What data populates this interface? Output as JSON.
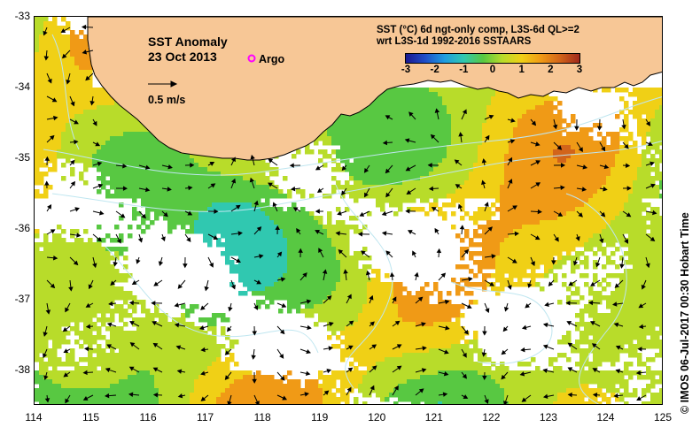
{
  "map": {
    "title": "SST Anomaly",
    "date": "23 Oct 2013",
    "argo_label": "Argo",
    "velocity_scale_label": "0.5 m/s",
    "description_line1": "SST (°C) 6d ngt-only comp, L3S-6d QL>=2",
    "description_line2": "wrt L3S-1d 1992-2016 SSTAARS",
    "credit": "© IMOS 06-Jul-2017 00:30 Hobart Time",
    "extent": {
      "lon_min": 114,
      "lon_max": 125,
      "lat_min": -38.5,
      "lat_max": -33
    },
    "colors": {
      "land": "#f7c796",
      "no_data": "#ffffff",
      "argo_marker": "#ff00ff",
      "arrow": "#000000",
      "contour": "#bfe6f0"
    },
    "colorbar": {
      "min": -3,
      "max": 3,
      "ticks": [
        "-3",
        "-2",
        "-1",
        "0",
        "1",
        "2",
        "3"
      ],
      "stops": [
        "#1a1890",
        "#1f4ec8",
        "#1f9ce0",
        "#30c8b0",
        "#58c842",
        "#b8dc2a",
        "#f0d016",
        "#f09a16",
        "#d2641a",
        "#a0281c"
      ]
    }
  },
  "axes": {
    "x_ticks": [
      "114",
      "115",
      "116",
      "117",
      "118",
      "119",
      "120",
      "121",
      "122",
      "123",
      "124",
      "125"
    ],
    "y_ticks": [
      "-33",
      "-34",
      "-35",
      "-36",
      "-37",
      "-38"
    ]
  }
}
